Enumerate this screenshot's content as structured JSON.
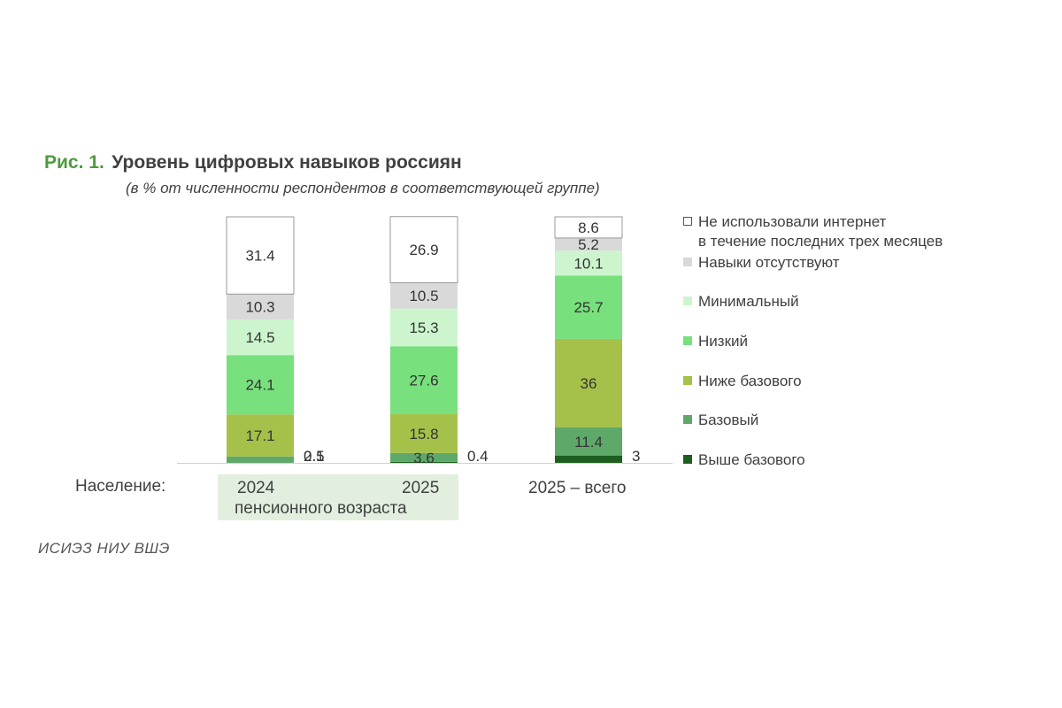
{
  "figure": {
    "label": "Рис. 1.",
    "title": "Уровень цифровых навыков россиян",
    "subtitle": "(в % от численности респондентов в соответствующей группе)"
  },
  "x_axis": {
    "population_label": "Население:",
    "year_2024": "2024",
    "year_2025": "2025",
    "pension_group": "пенсионного возраста",
    "total_2025": "2025 – всего"
  },
  "source": "ИСИЭЗ НИУ ВШЭ",
  "colors": {
    "no_internet": "#ffffff",
    "no_skills": "#d9d9d9",
    "minimal": "#cdf5cd",
    "low": "#78e07d",
    "below_basic": "#a5c14a",
    "basic": "#5ea96a",
    "above_basic": "#1e5e1e",
    "title_green": "#4f9a3f"
  },
  "chart_data": {
    "type": "bar",
    "stacked": true,
    "categories": [
      "2024 пенсионного возраста",
      "2025 пенсионного возраста",
      "2025 – всего"
    ],
    "series": [
      {
        "name": "Выше базового",
        "key": "above_basic",
        "values": [
          0.1,
          0.4,
          3
        ]
      },
      {
        "name": "Базовый",
        "key": "basic",
        "values": [
          2.5,
          3.6,
          11.4
        ]
      },
      {
        "name": "Ниже базового",
        "key": "below_basic",
        "values": [
          17.1,
          15.8,
          36
        ]
      },
      {
        "name": "Низкий",
        "key": "low",
        "values": [
          24.1,
          27.6,
          25.7
        ]
      },
      {
        "name": "Минимальный",
        "key": "minimal",
        "values": [
          14.5,
          15.3,
          10.1
        ]
      },
      {
        "name": "Навыки отсутствуют",
        "key": "no_skills",
        "values": [
          10.3,
          10.5,
          5.2
        ]
      },
      {
        "name": "Не использовали интернет\nв течение последних трех месяцев",
        "key": "no_internet",
        "values": [
          31.4,
          26.9,
          8.6
        ]
      }
    ],
    "ylim": [
      0,
      100
    ],
    "legend_position": "right"
  }
}
